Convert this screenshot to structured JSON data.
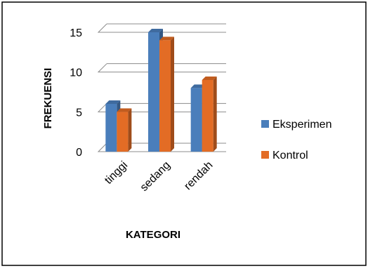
{
  "chart_data": {
    "type": "bar",
    "style": "3d-clustered-column",
    "categories": [
      "tinggi",
      "sedang",
      "rendah"
    ],
    "series": [
      {
        "name": "Eksperimen",
        "values": [
          6,
          15,
          8
        ],
        "color": "#4a7ebb"
      },
      {
        "name": "Kontrol",
        "values": [
          5,
          14,
          9
        ],
        "color": "#e36c25"
      }
    ],
    "xlabel": "KATEGORI",
    "ylabel": "FREKUENSI",
    "ylim": [
      0,
      15
    ],
    "yticks": [
      0,
      5,
      10,
      15
    ],
    "grid": true,
    "legend_position": "right"
  }
}
